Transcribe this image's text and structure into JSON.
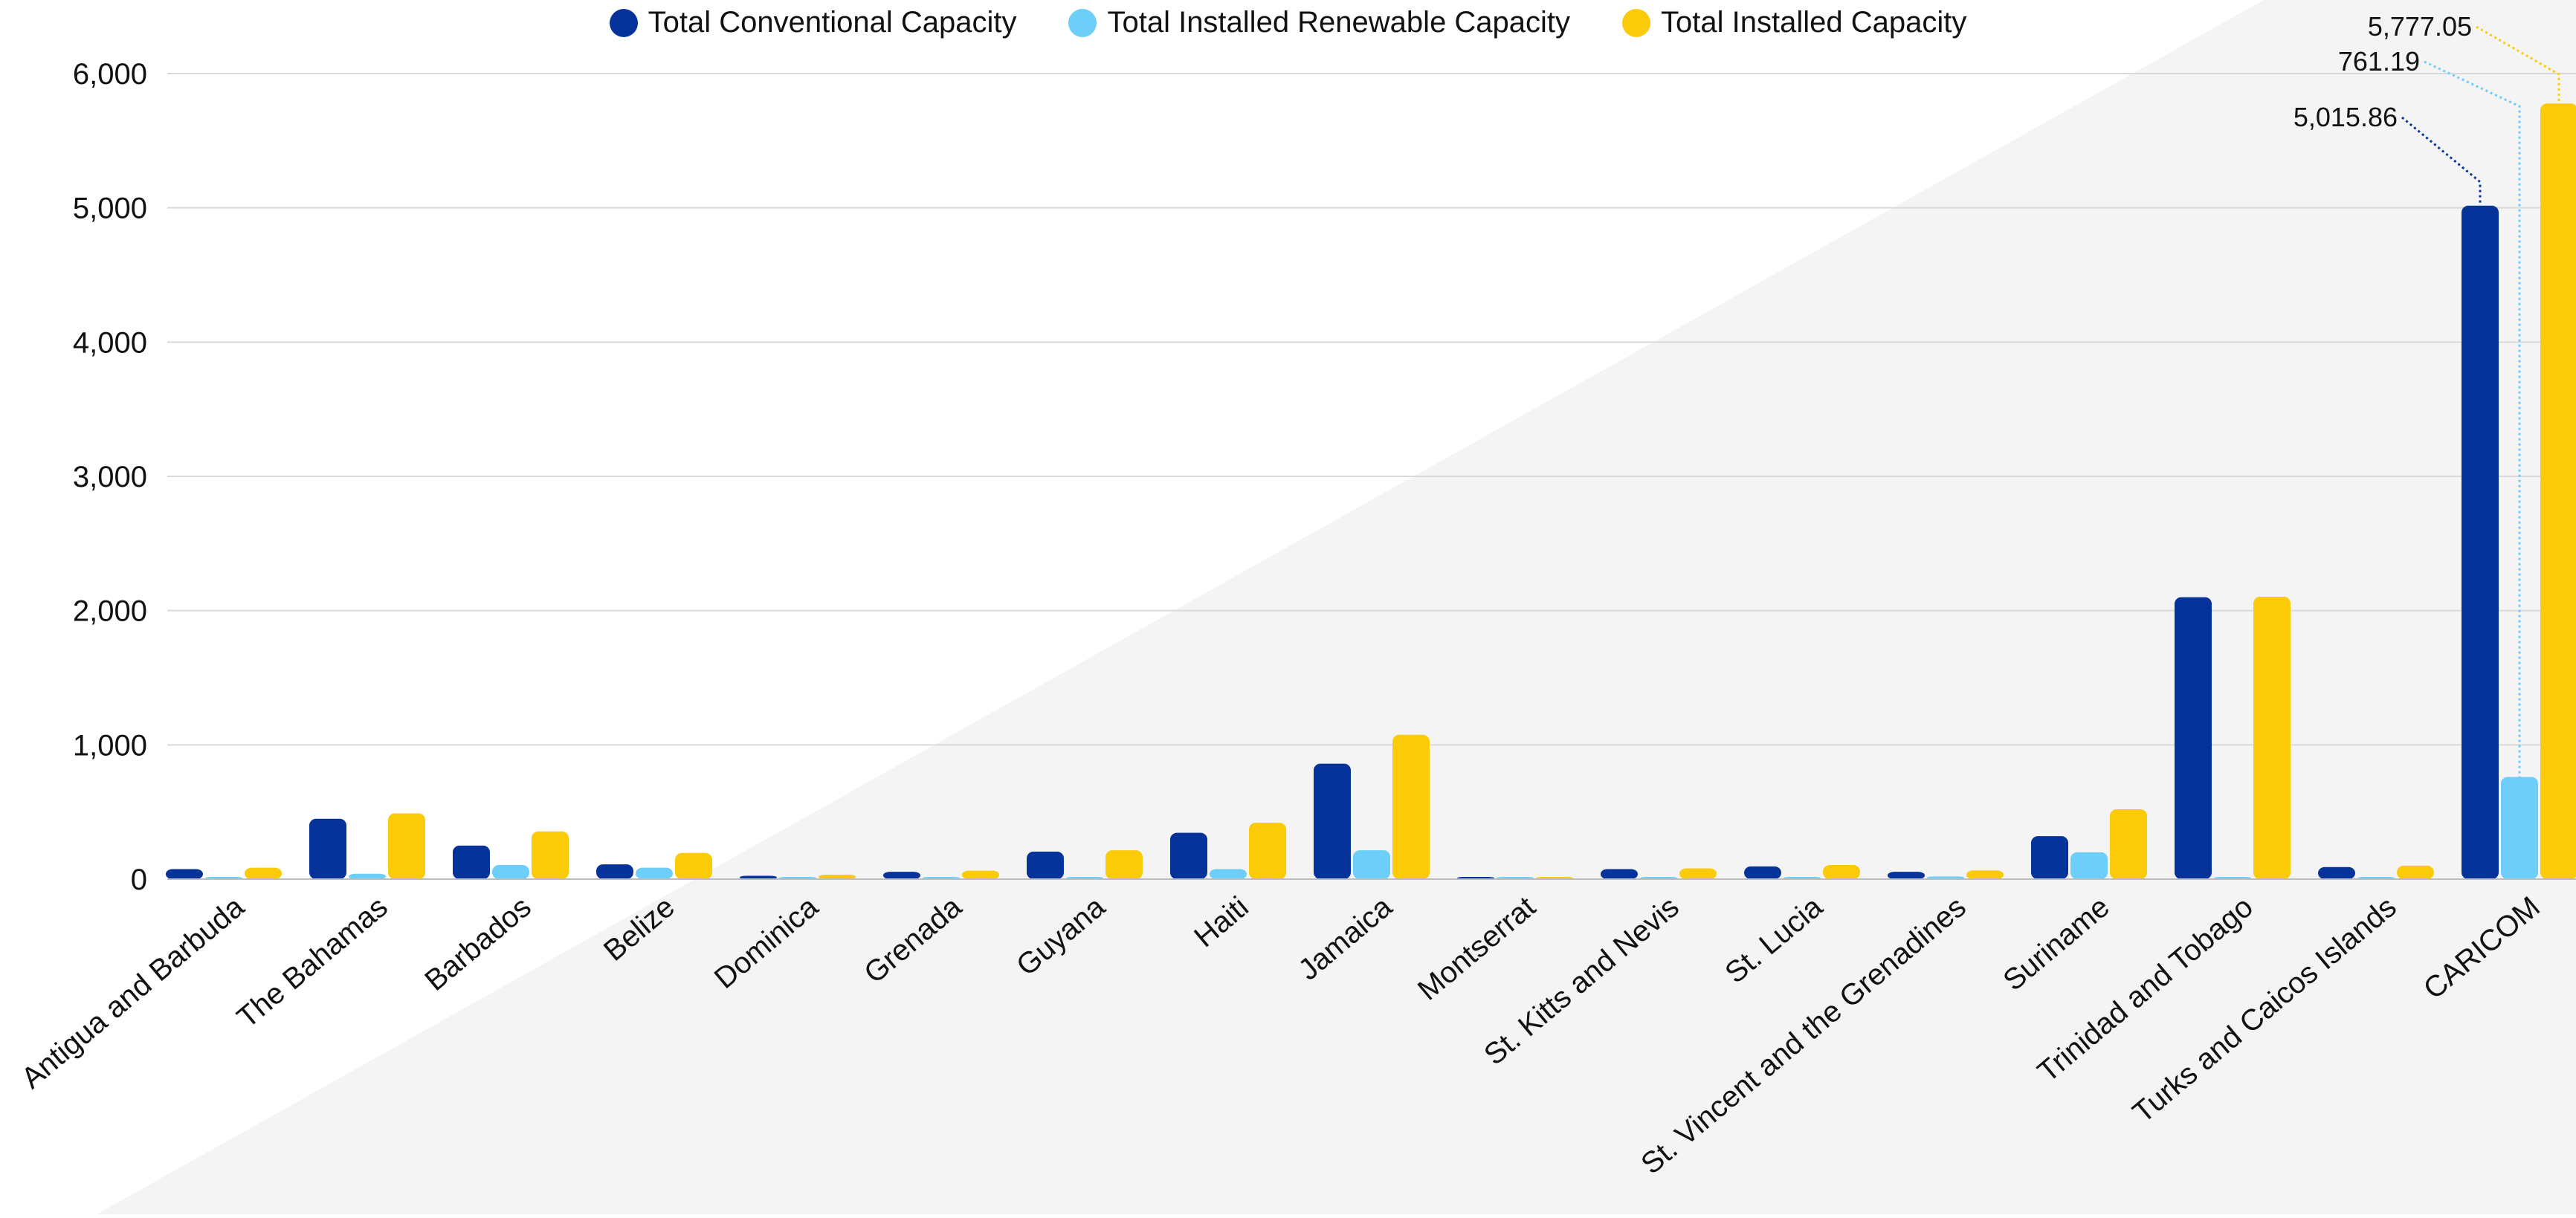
{
  "colors": {
    "conventional": "#06339A",
    "renewable": "#6CCEF9",
    "installed": "#FBCB0A",
    "background_band": "#F4F4F4",
    "grid": "#D9D9D9"
  },
  "chart_data": {
    "type": "bar",
    "title": "",
    "xlabel": "",
    "ylabel": "",
    "ylim": [
      0,
      6000
    ],
    "yticks": [
      0,
      1000,
      2000,
      3000,
      4000,
      5000,
      6000
    ],
    "ytick_labels": [
      "0",
      "1,000",
      "2,000",
      "3,000",
      "4,000",
      "5,000",
      "6,000"
    ],
    "grid": true,
    "legend_position": "top-center",
    "categories": [
      "Antigua and Barbuda",
      "The Bahamas",
      "Barbados",
      "Belize",
      "Dominica",
      "Grenada",
      "Guyana",
      "Haiti",
      "Jamaica",
      "Montserrat",
      "St. Kitts and Nevis",
      "St. Lucia",
      "St. Vincent and the Grenadines",
      "Suriname",
      "Trinidad and Tobago",
      "Turks and Caicos Islands",
      "CARICOM"
    ],
    "series": [
      {
        "name": "Total Conventional Capacity",
        "color_key": "conventional",
        "values": [
          75,
          450,
          250,
          110,
          25,
          55,
          205,
          345,
          860,
          8,
          75,
          95,
          55,
          320,
          2100,
          90,
          5015.86
        ]
      },
      {
        "name": "Total Installed Renewable Capacity",
        "color_key": "renewable",
        "values": [
          8,
          40,
          105,
          85,
          8,
          8,
          10,
          75,
          215,
          2,
          5,
          10,
          20,
          200,
          3,
          10,
          761.19
        ]
      },
      {
        "name": "Total Installed Capacity",
        "color_key": "installed",
        "values": [
          85,
          490,
          355,
          195,
          33,
          63,
          215,
          420,
          1075,
          10,
          80,
          105,
          65,
          520,
          2103,
          100,
          5777.05
        ]
      }
    ],
    "annotations": [
      {
        "label": "5,015.86",
        "category": "CARICOM",
        "series_index": 0
      },
      {
        "label": "761.19",
        "category": "CARICOM",
        "series_index": 1
      },
      {
        "label": "5,777.05",
        "category": "CARICOM",
        "series_index": 2
      }
    ]
  }
}
